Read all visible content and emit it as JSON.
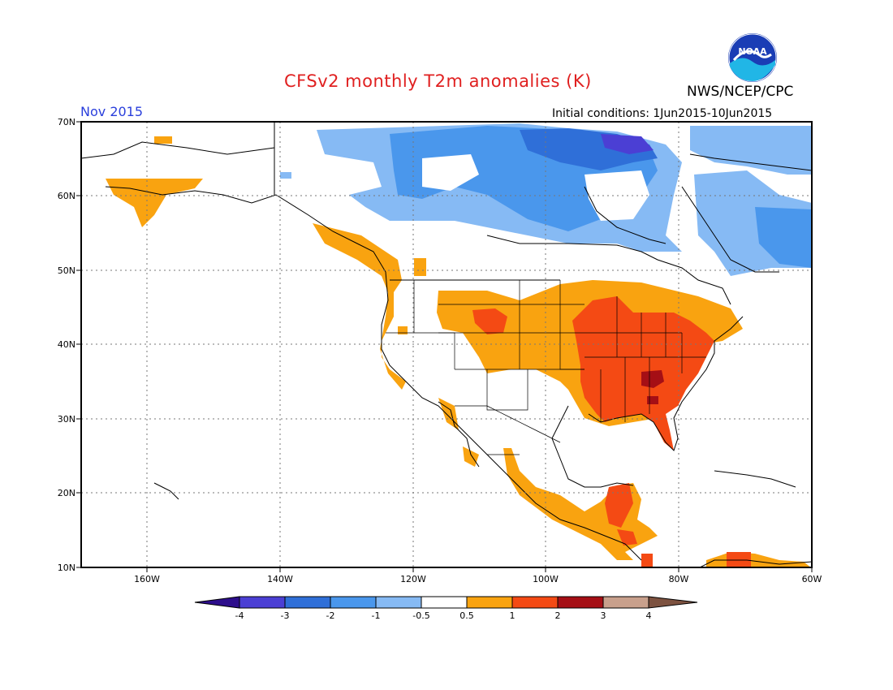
{
  "title": "CFSv2 monthly T2m anomalies (K)",
  "agency": "NWS/NCEP/CPC",
  "period": "Nov 2015",
  "initial_conditions": "Initial conditions: 1Jun2015-10Jun2015",
  "logo_text": "NOAA",
  "map": {
    "lon_range": [
      -171,
      -60
    ],
    "lat_range": [
      10,
      70
    ],
    "lat_labels": [
      "70N",
      "60N",
      "50N",
      "40N",
      "30N",
      "20N",
      "10N"
    ],
    "lon_labels": [
      "160W",
      "140W",
      "120W",
      "100W",
      "80W",
      "60W"
    ]
  },
  "legend": {
    "labels": [
      "-4",
      "-3",
      "-2",
      "-1",
      "-0.5",
      "0.5",
      "1",
      "2",
      "3",
      "4"
    ],
    "colors": [
      "#2d0e8c",
      "#4b3fd4",
      "#2f6fd8",
      "#4a97ec",
      "#86baf4",
      "#ffffff",
      "#f9a310",
      "#f44a14",
      "#a50f15",
      "#c8a08c",
      "#7d5240"
    ]
  },
  "anomaly_regions": [
    {
      "name": "southeast-us",
      "level": "1 to 2 K",
      "color": "#f44a14"
    },
    {
      "name": "central-plains",
      "level": "0.5 to 1 K",
      "color": "#f9a310"
    },
    {
      "name": "canadian-arctic",
      "level": "-1 to -0.5 K",
      "color": "#86baf4"
    },
    {
      "name": "hudson-bay",
      "level": "-3 to -2 K",
      "color": "#2f6fd8"
    }
  ]
}
